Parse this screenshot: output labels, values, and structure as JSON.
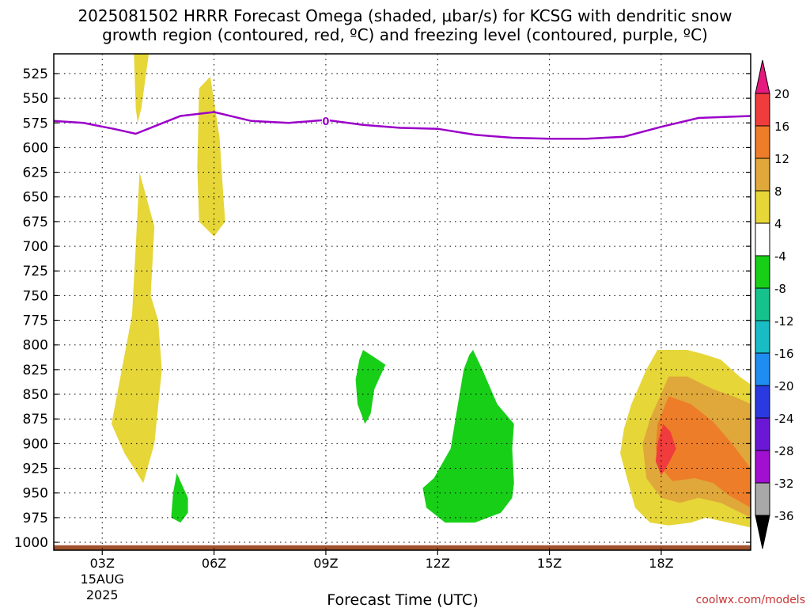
{
  "title": {
    "line1": "2025081502 HRRR Forecast Omega (shaded, μbar/s) for KCSG with dendritic snow",
    "line2": "growth region (contoured, red, ºC) and freezing level (contoured, purple, ºC)"
  },
  "watermark": "coolwx.com/models",
  "colors": {
    "freezing_line": "#9b00c8",
    "ground": "#a0522d",
    "frame": "#000000",
    "grid": "#000000"
  },
  "chart_data": {
    "type": "heatmap",
    "xlabel": "Forecast Time (UTC)",
    "ylabel": "",
    "x_unit": "hours since 2025-08-15 00Z",
    "xlim": [
      1.7,
      20.4
    ],
    "ylim": [
      1008,
      505
    ],
    "x_ticks": [
      {
        "hour": 3,
        "label": "03Z",
        "sub": [
          "15AUG",
          "2025"
        ]
      },
      {
        "hour": 6,
        "label": "06Z",
        "sub": []
      },
      {
        "hour": 9,
        "label": "09Z",
        "sub": []
      },
      {
        "hour": 12,
        "label": "12Z",
        "sub": []
      },
      {
        "hour": 15,
        "label": "15Z",
        "sub": []
      },
      {
        "hour": 18,
        "label": "18Z",
        "sub": []
      }
    ],
    "y_ticks": [
      525,
      550,
      575,
      600,
      625,
      650,
      675,
      700,
      725,
      750,
      775,
      800,
      825,
      850,
      875,
      900,
      925,
      950,
      975,
      1000
    ],
    "grid": true,
    "colorbar": {
      "levels": [
        -36,
        -32,
        -28,
        -24,
        -20,
        -16,
        -12,
        -8,
        -4,
        4,
        8,
        12,
        16,
        20
      ],
      "labels": [
        "20",
        "16",
        "12",
        "8",
        "4",
        "-4",
        "-8",
        "-12",
        "-16",
        "-20",
        "-24",
        "-28",
        "-32",
        "-36"
      ],
      "bins": [
        {
          "range": [
            20,
            99
          ],
          "color": "#e6197f"
        },
        {
          "range": [
            16,
            20
          ],
          "color": "#f03c3c"
        },
        {
          "range": [
            12,
            16
          ],
          "color": "#ee7d2a"
        },
        {
          "range": [
            8,
            12
          ],
          "color": "#e0a83a"
        },
        {
          "range": [
            4,
            8
          ],
          "color": "#e6d638"
        },
        {
          "range": [
            -4,
            4
          ],
          "color": "#ffffff"
        },
        {
          "range": [
            -8,
            -4
          ],
          "color": "#18cf18"
        },
        {
          "range": [
            -12,
            -8
          ],
          "color": "#16c28c"
        },
        {
          "range": [
            -16,
            -12
          ],
          "color": "#19bcc4"
        },
        {
          "range": [
            -20,
            -16
          ],
          "color": "#1f8cf0"
        },
        {
          "range": [
            -24,
            -20
          ],
          "color": "#2a3ae0"
        },
        {
          "range": [
            -28,
            -24
          ],
          "color": "#6a18d6"
        },
        {
          "range": [
            -32,
            -28
          ],
          "color": "#a10fd0"
        },
        {
          "range": [
            -36,
            -32
          ],
          "color": "#a8a8a8"
        },
        {
          "range": [
            -99,
            -36
          ],
          "color": "#000000"
        }
      ]
    },
    "freezing_level": {
      "label": "0",
      "label_at": [
        9.0,
        573
      ],
      "points": [
        [
          1.7,
          573
        ],
        [
          2.5,
          575
        ],
        [
          3.3,
          581
        ],
        [
          3.9,
          586
        ],
        [
          4.5,
          577
        ],
        [
          5.1,
          568
        ],
        [
          6.0,
          564
        ],
        [
          7.0,
          573
        ],
        [
          8.0,
          575
        ],
        [
          9.0,
          572
        ],
        [
          10.0,
          577
        ],
        [
          11.0,
          580
        ],
        [
          12.0,
          581
        ],
        [
          13.0,
          587
        ],
        [
          14.0,
          590
        ],
        [
          15.0,
          591
        ],
        [
          16.0,
          591
        ],
        [
          17.0,
          589
        ],
        [
          18.0,
          579
        ],
        [
          19.0,
          570
        ],
        [
          20.4,
          568
        ]
      ]
    },
    "omega_regions": [
      {
        "bin": [
          4,
          8
        ],
        "points": [
          [
            3.85,
            505
          ],
          [
            4.25,
            505
          ],
          [
            4.05,
            560
          ],
          [
            3.95,
            575
          ],
          [
            3.9,
            560
          ]
        ]
      },
      {
        "bin": [
          4,
          8
        ],
        "points": [
          [
            5.6,
            540
          ],
          [
            5.9,
            528
          ],
          [
            6.15,
            590
          ],
          [
            6.25,
            650
          ],
          [
            6.3,
            675
          ],
          [
            6.0,
            690
          ],
          [
            5.6,
            675
          ],
          [
            5.55,
            620
          ]
        ]
      },
      {
        "bin": [
          4,
          8
        ],
        "points": [
          [
            4.0,
            625
          ],
          [
            4.4,
            680
          ],
          [
            4.3,
            750
          ],
          [
            4.5,
            775
          ],
          [
            4.6,
            825
          ],
          [
            4.4,
            900
          ],
          [
            4.1,
            940
          ],
          [
            3.6,
            910
          ],
          [
            3.25,
            880
          ],
          [
            3.5,
            830
          ],
          [
            3.8,
            770
          ],
          [
            3.9,
            700
          ]
        ]
      },
      {
        "bin": [
          -8,
          -4
        ],
        "points": [
          [
            5.0,
            930
          ],
          [
            5.3,
            955
          ],
          [
            5.3,
            970
          ],
          [
            5.1,
            980
          ],
          [
            4.85,
            975
          ],
          [
            4.9,
            950
          ]
        ]
      },
      {
        "bin": [
          -8,
          -4
        ],
        "points": [
          [
            10.0,
            805
          ],
          [
            10.4,
            815
          ],
          [
            10.6,
            820
          ],
          [
            10.3,
            845
          ],
          [
            10.2,
            870
          ],
          [
            10.05,
            880
          ],
          [
            9.85,
            860
          ],
          [
            9.8,
            835
          ],
          [
            9.9,
            815
          ]
        ]
      },
      {
        "bin": [
          -8,
          -4
        ],
        "points": [
          [
            12.95,
            805
          ],
          [
            13.2,
            825
          ],
          [
            13.6,
            860
          ],
          [
            14.05,
            880
          ],
          [
            14.0,
            905
          ],
          [
            14.05,
            940
          ],
          [
            14.0,
            955
          ],
          [
            13.7,
            970
          ],
          [
            13.0,
            980
          ],
          [
            12.2,
            980
          ],
          [
            11.7,
            965
          ],
          [
            11.6,
            945
          ],
          [
            11.9,
            935
          ],
          [
            12.35,
            905
          ],
          [
            12.5,
            870
          ],
          [
            12.7,
            825
          ],
          [
            12.85,
            810
          ]
        ]
      },
      {
        "bin": [
          4,
          8
        ],
        "points": [
          [
            17.2,
            860
          ],
          [
            17.6,
            825
          ],
          [
            17.9,
            805
          ],
          [
            18.7,
            805
          ],
          [
            19.2,
            810
          ],
          [
            19.6,
            815
          ],
          [
            20.1,
            832
          ],
          [
            20.4,
            840
          ],
          [
            20.4,
            985
          ],
          [
            19.8,
            980
          ],
          [
            19.2,
            975
          ],
          [
            18.8,
            980
          ],
          [
            18.2,
            983
          ],
          [
            17.7,
            980
          ],
          [
            17.3,
            965
          ],
          [
            16.9,
            910
          ],
          [
            17.0,
            885
          ]
        ]
      },
      {
        "bin": [
          8,
          12
        ],
        "points": [
          [
            17.7,
            875
          ],
          [
            18.2,
            832
          ],
          [
            18.7,
            832
          ],
          [
            19.4,
            845
          ],
          [
            20.0,
            853
          ],
          [
            20.4,
            860
          ],
          [
            20.4,
            975
          ],
          [
            19.6,
            960
          ],
          [
            19.0,
            955
          ],
          [
            18.5,
            960
          ],
          [
            18.0,
            955
          ],
          [
            17.6,
            935
          ],
          [
            17.5,
            900
          ]
        ]
      },
      {
        "bin": [
          12,
          16
        ],
        "points": [
          [
            17.9,
            880
          ],
          [
            18.2,
            852
          ],
          [
            18.8,
            860
          ],
          [
            19.4,
            878
          ],
          [
            19.9,
            900
          ],
          [
            20.4,
            925
          ],
          [
            20.4,
            965
          ],
          [
            19.8,
            952
          ],
          [
            19.4,
            940
          ],
          [
            18.9,
            935
          ],
          [
            18.3,
            938
          ],
          [
            18.0,
            925
          ],
          [
            17.85,
            905
          ]
        ]
      },
      {
        "bin": [
          16,
          20
        ],
        "points": [
          [
            17.9,
            900
          ],
          [
            18.05,
            880
          ],
          [
            18.25,
            888
          ],
          [
            18.4,
            905
          ],
          [
            18.2,
            920
          ],
          [
            18.0,
            932
          ],
          [
            17.85,
            918
          ]
        ]
      }
    ]
  }
}
